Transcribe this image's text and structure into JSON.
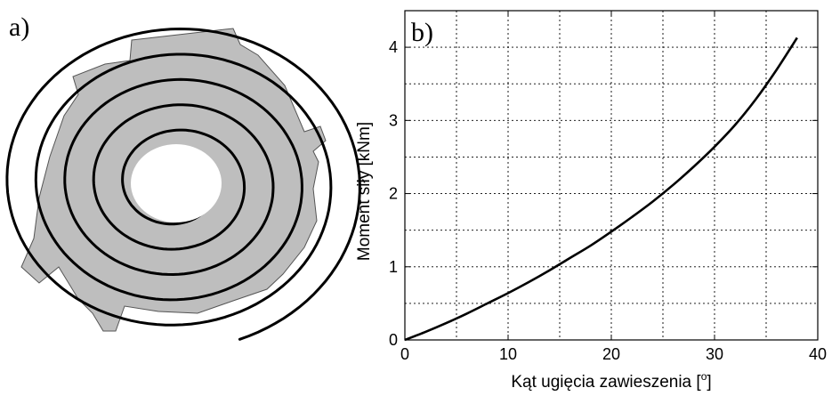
{
  "panel_a": {
    "label": "a)"
  },
  "panel_b": {
    "label": "b)"
  },
  "colors": {
    "spring_fill": "#bebebe",
    "spring_slot": "#000000",
    "curve": "#000000"
  },
  "chart_data": {
    "type": "line",
    "title": "",
    "xlabel": "Kąt ugięcia zawieszenia [ o ]",
    "ylabel": "Moment siły [kNm]",
    "xlim": [
      0,
      40
    ],
    "ylim": [
      0,
      4.5
    ],
    "xticks": [
      0,
      10,
      20,
      30,
      40
    ],
    "yticks": [
      0,
      1,
      2,
      3,
      4
    ],
    "xtick_labels": [
      "0",
      "10",
      "20",
      "30",
      "40"
    ],
    "ytick_labels": [
      "0",
      "1",
      "2",
      "3",
      "4"
    ],
    "grid": true,
    "grid_x": [
      0,
      5,
      10,
      15,
      20,
      25,
      30,
      35,
      40
    ],
    "grid_y": [
      0,
      0.5,
      1,
      1.5,
      2,
      2.5,
      3,
      3.5,
      4,
      4.5
    ],
    "series": [
      {
        "x": [
          0,
          2,
          4,
          6,
          8,
          10,
          12,
          14,
          16,
          18,
          20,
          22,
          24,
          26,
          28,
          30,
          32,
          34,
          36,
          38
        ],
        "y": [
          0,
          0.11,
          0.23,
          0.36,
          0.5,
          0.64,
          0.79,
          0.95,
          1.12,
          1.29,
          1.48,
          1.68,
          1.89,
          2.12,
          2.37,
          2.64,
          2.94,
          3.29,
          3.69,
          4.13
        ]
      }
    ]
  }
}
